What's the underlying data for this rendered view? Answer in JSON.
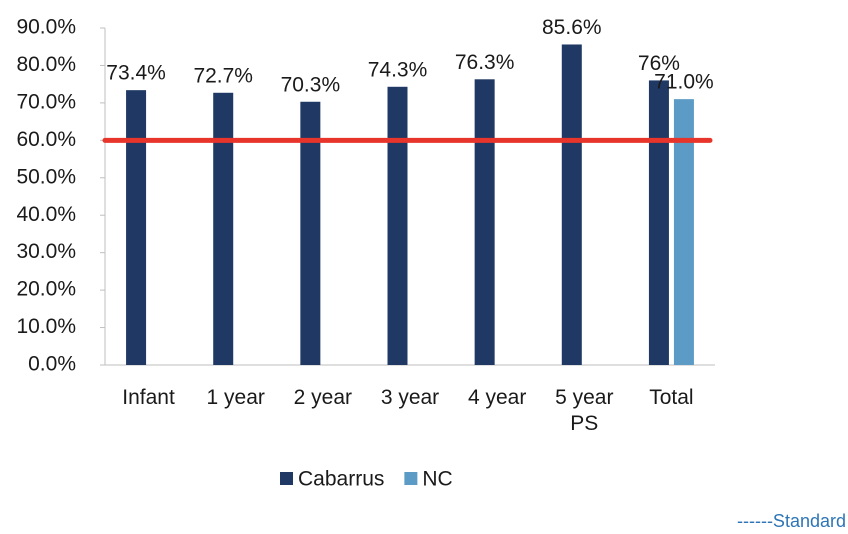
{
  "chart_data": {
    "type": "bar",
    "categories": [
      "Infant",
      "1 year",
      "2 year",
      "3 year",
      "4 year",
      "5 year PS",
      "Total"
    ],
    "series": [
      {
        "name": "Cabarrus",
        "color": "#1f3864",
        "values": [
          73.4,
          72.7,
          70.3,
          74.3,
          76.3,
          85.6,
          76
        ],
        "value_labels": [
          "73.4%",
          "72.7%",
          "70.3%",
          "74.3%",
          "76.3%",
          "85.6%",
          "76%"
        ]
      },
      {
        "name": "NC",
        "color": "#5b9bc5",
        "values": [
          null,
          null,
          null,
          null,
          null,
          null,
          71.0
        ],
        "value_labels": [
          null,
          null,
          null,
          null,
          null,
          null,
          "71.0%"
        ]
      }
    ],
    "standard": {
      "value": 60,
      "label": "------Standard",
      "color": "#e8352b"
    },
    "ylim": [
      0,
      90
    ],
    "yticks": [
      {
        "value": 0,
        "label": "0.0%"
      },
      {
        "value": 10,
        "label": "10.0%"
      },
      {
        "value": 20,
        "label": "20.0%"
      },
      {
        "value": 30,
        "label": "30.0%"
      },
      {
        "value": 40,
        "label": "40.0%"
      },
      {
        "value": 50,
        "label": "50.0%"
      },
      {
        "value": 60,
        "label": "60.0%"
      },
      {
        "value": 70,
        "label": "70.0%"
      },
      {
        "value": 80,
        "label": "80.0%"
      },
      {
        "value": 90,
        "label": "90.0%"
      }
    ],
    "legend": "bottom"
  }
}
